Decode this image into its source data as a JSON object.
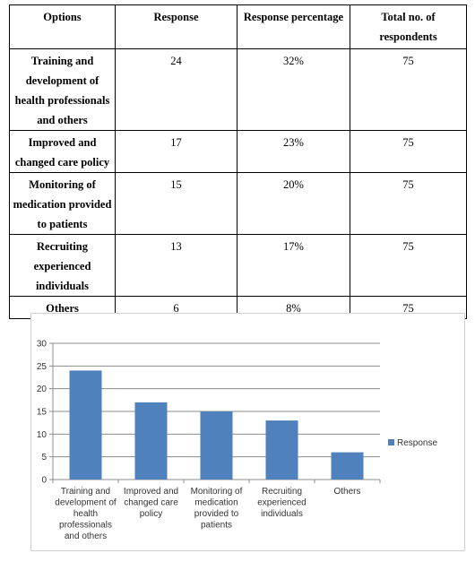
{
  "table": {
    "headers": [
      "Options",
      "Response",
      "Response percentage",
      "Total no. of respondents"
    ],
    "rows": [
      {
        "option_lines": [
          "Training and",
          "development of",
          "health professionals",
          "and others"
        ],
        "response": "24",
        "percentage": "32%",
        "total": "75"
      },
      {
        "option_lines": [
          "Improved and",
          "changed care policy"
        ],
        "response": "17",
        "percentage": "23%",
        "total": "75"
      },
      {
        "option_lines": [
          "Monitoring of",
          "medication provided",
          "to patients"
        ],
        "response": "15",
        "percentage": "20%",
        "total": "75"
      },
      {
        "option_lines": [
          "Recruiting",
          "experienced",
          "individuals"
        ],
        "response": "13",
        "percentage": "17%",
        "total": "75"
      },
      {
        "option_lines": [
          "Others"
        ],
        "response": "6",
        "percentage": "8%",
        "total": "75"
      }
    ]
  },
  "chart_data": {
    "type": "bar",
    "categories": [
      [
        "Training and",
        "development of",
        "health",
        "professionals",
        "and others"
      ],
      [
        "Improved and",
        "changed care",
        "policy"
      ],
      [
        "Monitoring of",
        "medication",
        "provided to",
        "patients"
      ],
      [
        "Recruiting",
        "experienced",
        "individuals"
      ],
      [
        "Others"
      ]
    ],
    "series": [
      {
        "name": "Response",
        "values": [
          24,
          17,
          15,
          13,
          6
        ],
        "color": "#4f81bd"
      }
    ],
    "ylim": [
      0,
      30
    ],
    "yticks": [
      0,
      5,
      10,
      15,
      20,
      25,
      30
    ],
    "grid": true,
    "legend": "right",
    "title": "",
    "xlabel": "",
    "ylabel": ""
  }
}
